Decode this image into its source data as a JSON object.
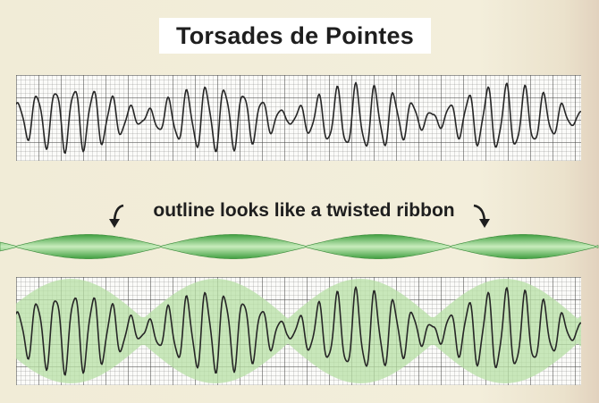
{
  "title": "Torsades de Pointes",
  "caption": "outline looks like a twisted ribbon",
  "colors": {
    "ribbon_green": "#5cb85c",
    "ribbon_light": "#c4e9b8",
    "envelope_green": "#b7e0a4",
    "trace": "#262626",
    "background": "#f2eddb"
  }
}
